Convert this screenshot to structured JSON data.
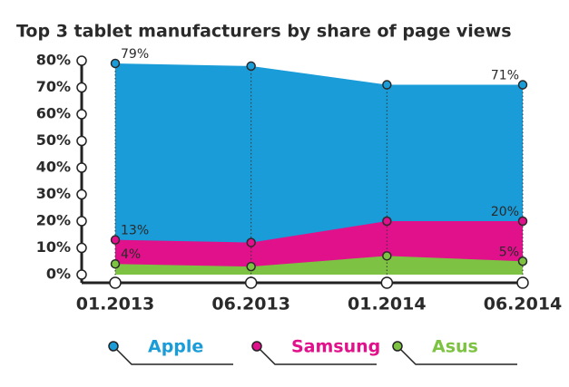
{
  "chart_data": {
    "type": "area",
    "title": "Top 3 tablet manufacturers by share of page views",
    "categories": [
      "01.2013",
      "06.2013",
      "01.2014",
      "06.2014"
    ],
    "series": [
      {
        "name": "Apple",
        "color": "#1a9cd8",
        "values": [
          79,
          78,
          71,
          71
        ],
        "value_labels": [
          "79%",
          null,
          null,
          "71%"
        ]
      },
      {
        "name": "Samsung",
        "color": "#e0118a",
        "values": [
          13,
          12,
          20,
          20
        ],
        "value_labels": [
          "13%",
          null,
          null,
          "20%"
        ]
      },
      {
        "name": "Asus",
        "color": "#7dc242",
        "values": [
          4,
          3,
          7,
          5
        ],
        "value_labels": [
          "4%",
          null,
          null,
          "5%"
        ]
      }
    ],
    "ylim": [
      0,
      80
    ],
    "yticks": [
      {
        "value": 0,
        "label": "0%"
      },
      {
        "value": 10,
        "label": "10%"
      },
      {
        "value": 20,
        "label": "20%"
      },
      {
        "value": 30,
        "label": "30%"
      },
      {
        "value": 40,
        "label": "40%"
      },
      {
        "value": 50,
        "label": "50%"
      },
      {
        "value": 60,
        "label": "60%"
      },
      {
        "value": 70,
        "label": "70%"
      },
      {
        "value": 80,
        "label": "80%"
      }
    ],
    "grid": false,
    "legend": "bottom"
  }
}
